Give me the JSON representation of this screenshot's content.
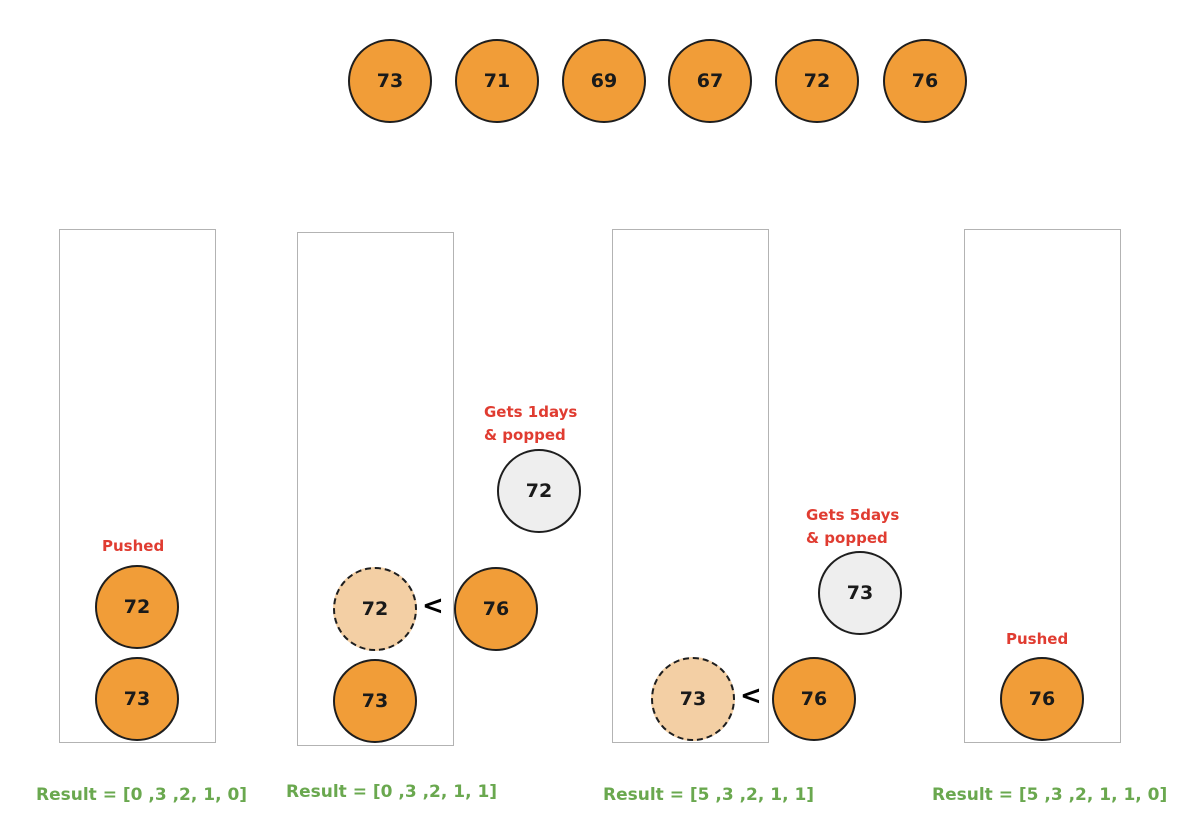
{
  "input_row": [
    "73",
    "71",
    "69",
    "67",
    "72",
    "76"
  ],
  "stage1": {
    "label": "Pushed",
    "stack": [
      "72",
      "73"
    ],
    "result": "Result = [0 ,3 ,2, 1, 0]"
  },
  "stage2": {
    "label": "Gets 1days\n& popped",
    "stack_top": "72",
    "stack_bottom": "73",
    "incoming": "76",
    "popped": "72",
    "comparator": "<",
    "result": "Result = [0 ,3 ,2, 1, 1]"
  },
  "stage3": {
    "label": "Gets 5days\n& popped",
    "stack_bottom": "73",
    "incoming": "76",
    "popped": "73",
    "comparator": "<",
    "result": "Result = [5 ,3 ,2, 1, 1]"
  },
  "stage4": {
    "label": "Pushed",
    "stack": [
      "76"
    ],
    "result": "Result = [5 ,3 ,2, 1, 1, 0]"
  },
  "colors": {
    "node": "#f19d38",
    "node_faded": "#f3cfa4",
    "node_popped": "#eeeeee",
    "label_red": "#e03c31",
    "result_green": "#6aa84f",
    "stack_border": "#b3b3b3"
  }
}
